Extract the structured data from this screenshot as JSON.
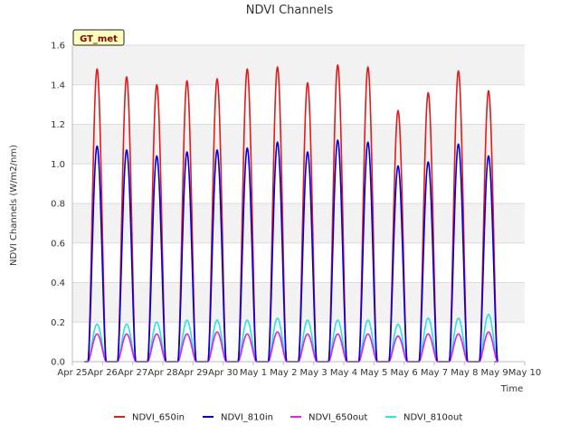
{
  "chart_data": {
    "type": "line",
    "title": "NDVI Channels",
    "xlabel": "Time",
    "ylabel": "NDVI Channels (W/m2/nm)",
    "badge": "GT_met",
    "ylim": [
      0.0,
      1.6
    ],
    "yticks": [
      "0.0",
      "0.2",
      "0.4",
      "0.6",
      "0.8",
      "1.0",
      "1.2",
      "1.4",
      "1.6"
    ],
    "xlim": [
      0,
      15
    ],
    "xticks": [
      "Apr 25",
      "Apr 26",
      "Apr 27",
      "Apr 28",
      "Apr 29",
      "Apr 30",
      "May 1",
      "May 2",
      "May 3",
      "May 4",
      "May 5",
      "May 6",
      "May 7",
      "May 8",
      "May 9",
      "May 10"
    ],
    "x_units": "days since Apr 25",
    "day_centers": [
      0.82,
      1.8,
      2.8,
      3.8,
      4.8,
      5.8,
      6.8,
      7.8,
      8.8,
      9.8,
      10.8,
      11.8,
      12.8,
      13.8
    ],
    "day_half_width": 0.3,
    "series": [
      {
        "name": "NDVI_650in",
        "color": "#e31a1c",
        "daily_peaks": [
          1.48,
          1.44,
          1.4,
          1.42,
          1.43,
          1.48,
          1.49,
          1.41,
          1.5,
          1.49,
          1.27,
          1.36,
          1.47,
          1.37
        ]
      },
      {
        "name": "NDVI_810in",
        "color": "#0000dd",
        "daily_peaks": [
          1.09,
          1.07,
          1.04,
          1.06,
          1.07,
          1.08,
          1.11,
          1.06,
          1.12,
          1.11,
          0.99,
          1.01,
          1.1,
          1.04
        ]
      },
      {
        "name": "NDVI_650out",
        "color": "#e61ee6",
        "daily_peaks": [
          0.14,
          0.14,
          0.14,
          0.14,
          0.15,
          0.14,
          0.15,
          0.14,
          0.14,
          0.14,
          0.13,
          0.14,
          0.14,
          0.15
        ]
      },
      {
        "name": "NDVI_810out",
        "color": "#22e6e6",
        "daily_peaks": [
          0.19,
          0.19,
          0.2,
          0.21,
          0.21,
          0.21,
          0.22,
          0.21,
          0.21,
          0.21,
          0.19,
          0.22,
          0.22,
          0.24
        ]
      }
    ],
    "legend_position": "bottom"
  }
}
